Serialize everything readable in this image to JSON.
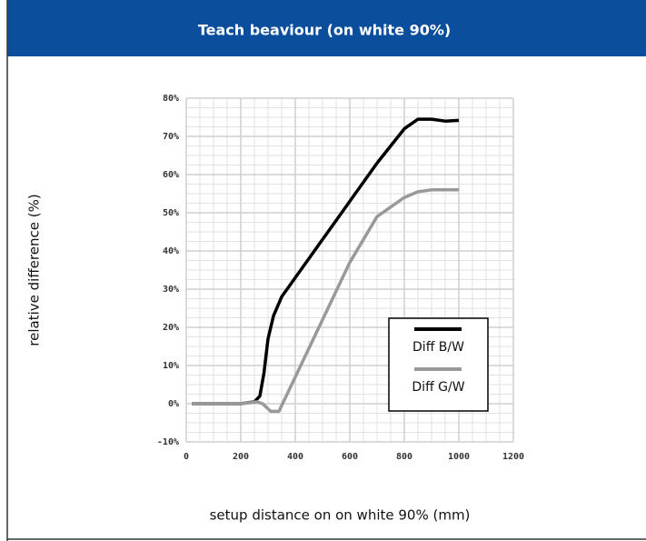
{
  "chart_data": {
    "type": "line",
    "title": "Teach beaviour (on white 90%)",
    "x_label": "setup distance on on white 90% (mm)",
    "y_label": "relative difference (%)",
    "xlim": [
      0,
      1200
    ],
    "xticks": [
      0,
      200,
      400,
      600,
      800,
      1000,
      1200
    ],
    "ylim": [
      -10,
      80
    ],
    "yticks": [
      {
        "value": -10,
        "label": "-10%"
      },
      {
        "value": 0,
        "label": "0%"
      },
      {
        "value": 10,
        "label": "10%"
      },
      {
        "value": 20,
        "label": "20%"
      },
      {
        "value": 30,
        "label": "30%"
      },
      {
        "value": 40,
        "label": "40%"
      },
      {
        "value": 50,
        "label": "50%"
      },
      {
        "value": 60,
        "label": "60%"
      },
      {
        "value": 70,
        "label": "70%"
      },
      {
        "value": 80,
        "label": "80%"
      }
    ],
    "grid": true,
    "legend": "lower right",
    "series": [
      {
        "name": "Diff B/W",
        "color": "#000000",
        "x": [
          20,
          200,
          250,
          270,
          285,
          300,
          320,
          350,
          400,
          500,
          600,
          700,
          800,
          850,
          900,
          950,
          1000
        ],
        "values": [
          0,
          0,
          0.5,
          2,
          8,
          17,
          23,
          28,
          33,
          43,
          53,
          63,
          72,
          74.5,
          74.5,
          74,
          74.2
        ]
      },
      {
        "name": "Diff G/W",
        "color": "#999999",
        "x": [
          20,
          200,
          260,
          280,
          310,
          340,
          400,
          500,
          600,
          700,
          800,
          850,
          900,
          1000
        ],
        "values": [
          0,
          0,
          0.5,
          0,
          -2,
          -2,
          7,
          22,
          37,
          49,
          54,
          55.5,
          56,
          56
        ]
      }
    ]
  }
}
